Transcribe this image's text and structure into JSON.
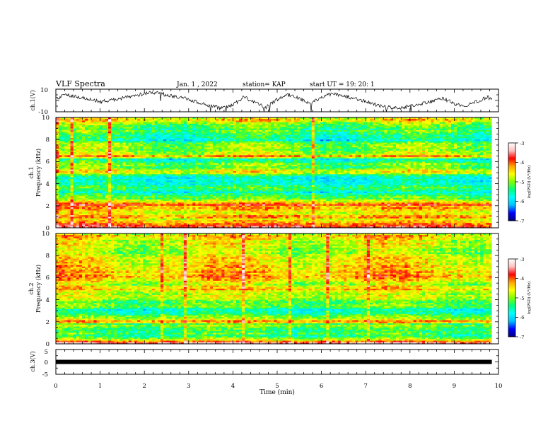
{
  "header": {
    "title": "VLF Spectra",
    "date": "Jan. 1 , 2022",
    "station": "station= KAP",
    "start": "start UT = 19: 20: 1"
  },
  "chart_data": [
    {
      "type": "line",
      "name": "ch1-voltage",
      "ylabel": "ch.1(V)",
      "ylim": [
        -10,
        10
      ],
      "yticks": [
        "10",
        "-10"
      ],
      "xlim": [
        0,
        10
      ],
      "x_end": 9.85,
      "series": [
        {
          "x": [
            0,
            0.25,
            0.5,
            0.75,
            1,
            1.25,
            1.5,
            1.75,
            2,
            2.25,
            2.5,
            2.75,
            3,
            3.25,
            3.5,
            3.75,
            4,
            4.25,
            4.5,
            4.75,
            5,
            5.25,
            5.5,
            5.75,
            6,
            6.25,
            6.5,
            6.75,
            7,
            7.25,
            7.5,
            7.75,
            8,
            8.25,
            8.5,
            8.75,
            9,
            9.25,
            9.5,
            9.75,
            9.85
          ],
          "values": [
            2,
            5,
            3,
            1,
            -1,
            0,
            2,
            4,
            6,
            7,
            5,
            3,
            1,
            -2,
            -5,
            -7,
            -4,
            3,
            -2,
            -6,
            1,
            5,
            2,
            -3,
            3,
            6,
            4,
            2,
            -1,
            -4,
            -6,
            -7,
            -5,
            -3,
            -1,
            2,
            -3,
            -5,
            -1,
            3,
            1
          ]
        }
      ]
    },
    {
      "type": "heatmap",
      "name": "ch1-spectrogram",
      "ylabel_line1": "ch.1",
      "ylabel_line2": "Frequency (kHz)",
      "ylim": [
        0,
        10
      ],
      "yticks": [
        "0",
        "2",
        "4",
        "6",
        "8",
        "10"
      ],
      "xlim": [
        0,
        9.85
      ],
      "zlim": [
        -7,
        -3
      ],
      "colorbar_ticks": [
        "-3",
        "-4",
        "-5",
        "-6",
        "-7"
      ],
      "colorbar_label": "log(PSD) (V²/Hz)",
      "colormap": [
        "#000080",
        "#0000ff",
        "#00bfff",
        "#00ffff",
        "#00ff7f",
        "#7fff00",
        "#ffff00",
        "#ffa500",
        "#ff0000",
        "#ffc0c0",
        "#ffffff"
      ],
      "profile_f_khz": [
        0,
        0.15,
        0.3,
        0.5,
        0.8,
        1,
        1.3,
        1.6,
        1.9,
        2.1,
        2.4,
        2.8,
        3.2,
        3.4,
        3.7,
        4.1,
        4.5,
        4.8,
        5.1,
        5.4,
        5.8,
        6.2,
        6.5,
        6.8,
        7.2,
        7.6,
        8,
        8.3,
        8.6,
        9,
        9.4,
        9.7,
        10
      ],
      "profile_log_psd": [
        -3.2,
        -4.3,
        -3.8,
        -4.4,
        -4.6,
        -4.1,
        -4.7,
        -4.4,
        -4.2,
        -3.9,
        -4.8,
        -5.3,
        -5.8,
        -5.3,
        -5.4,
        -5.6,
        -5.9,
        -5.2,
        -4.5,
        -5.2,
        -5.1,
        -5.6,
        -4.3,
        -5,
        -5.1,
        -5,
        -5.8,
        -5.5,
        -5.1,
        -5.3,
        -4.9,
        -4.6,
        -4.6
      ]
    },
    {
      "type": "heatmap",
      "name": "ch2-spectrogram",
      "ylabel_line1": "ch.2",
      "ylabel_line2": "Frequency (kHz)",
      "ylim": [
        0,
        10
      ],
      "yticks": [
        "0",
        "2",
        "4",
        "6",
        "8",
        "10"
      ],
      "xlim": [
        0,
        9.85
      ],
      "zlim": [
        -7,
        -3
      ],
      "colorbar_ticks": [
        "-3",
        "-4",
        "-5",
        "-6",
        "-7"
      ],
      "colorbar_label": "log(PSD) (V²/Hz)",
      "colormap": [
        "#000080",
        "#0000ff",
        "#00bfff",
        "#00ffff",
        "#00ff7f",
        "#7fff00",
        "#ffff00",
        "#ffa500",
        "#ff0000",
        "#ffc0c0",
        "#ffffff"
      ],
      "profile_f_khz": [
        0,
        0.15,
        0.3,
        0.6,
        1,
        1.4,
        1.8,
        2,
        2.3,
        2.7,
        3.1,
        3.4,
        3.8,
        4.2,
        4.6,
        4.9,
        5.3,
        5.7,
        6,
        6.4,
        6.7,
        7,
        7.4,
        7.7,
        8,
        8.3,
        8.7,
        9.2,
        9.6,
        10
      ],
      "profile_log_psd": [
        -3.2,
        -3.9,
        -4.5,
        -5.2,
        -5.3,
        -5.1,
        -5.1,
        -4.2,
        -4.8,
        -5.5,
        -5.7,
        -5,
        -5.1,
        -4.8,
        -5,
        -4.3,
        -4.8,
        -4.6,
        -4.1,
        -4.4,
        -4.3,
        -4.5,
        -4.6,
        -4.4,
        -4.9,
        -5,
        -4.6,
        -4.8,
        -4.3,
        -4.7
      ]
    },
    {
      "type": "line",
      "name": "ch3-voltage",
      "ylabel": "ch.3(V)",
      "ylim": [
        -5,
        5
      ],
      "yticks": [
        "5",
        "0",
        "-5"
      ],
      "xlim": [
        0,
        10
      ],
      "x_end": 9.85,
      "series": [
        {
          "x": [
            0,
            9.85
          ],
          "values": [
            0,
            0
          ]
        }
      ]
    }
  ],
  "xaxis": {
    "label": "Time (min)",
    "range": [
      0,
      10
    ],
    "ticks": [
      "0",
      "1",
      "2",
      "3",
      "4",
      "5",
      "6",
      "7",
      "8",
      "9",
      "10"
    ]
  }
}
